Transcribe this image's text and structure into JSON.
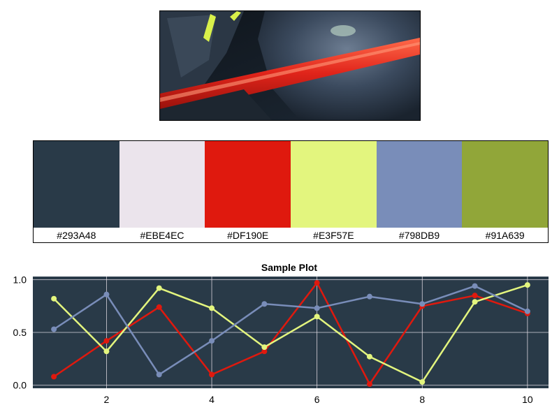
{
  "image": {
    "colors": {
      "background": "#1a232e",
      "armor": "#3b4a5e",
      "armor_light": "#6d7d92",
      "blade": "#e0241a",
      "blade_glow": "#ff6a4a",
      "accent": "#d9f04a"
    }
  },
  "palette": {
    "swatches": [
      {
        "hex": "#293A48",
        "color": "#293A48"
      },
      {
        "hex": "#EBE4EC",
        "color": "#EBE4EC"
      },
      {
        "hex": "#DF190E",
        "color": "#DF190E"
      },
      {
        "hex": "#E3F57E",
        "color": "#E3F57E"
      },
      {
        "hex": "#798DB9",
        "color": "#798DB9"
      },
      {
        "hex": "#91A639",
        "color": "#91A639"
      }
    ]
  },
  "chart_data": {
    "type": "line",
    "title": "Sample Plot",
    "xlabel": "",
    "ylabel": "",
    "x": [
      1,
      2,
      3,
      4,
      5,
      6,
      7,
      8,
      9,
      10
    ],
    "xticks": [
      2,
      4,
      6,
      8,
      10
    ],
    "yticks": [
      0.0,
      0.5,
      1.0
    ],
    "ytick_labels": [
      "0.0",
      "0.5",
      "1.0"
    ],
    "xlim": [
      0.6,
      10.4
    ],
    "ylim": [
      -0.03,
      1.03
    ],
    "grid": true,
    "background": "#293A48",
    "grid_color": "#EBE4EC",
    "series": [
      {
        "color": "#DF190E",
        "values": [
          0.08,
          0.42,
          0.74,
          0.1,
          0.32,
          0.97,
          0.01,
          0.75,
          0.85,
          0.68
        ]
      },
      {
        "color": "#E3F57E",
        "values": [
          0.82,
          0.32,
          0.92,
          0.73,
          0.36,
          0.65,
          0.27,
          0.03,
          0.79,
          0.95
        ]
      },
      {
        "color": "#798DB9",
        "values": [
          0.53,
          0.86,
          0.1,
          0.42,
          0.77,
          0.73,
          0.84,
          0.77,
          0.94,
          0.7
        ]
      }
    ]
  }
}
